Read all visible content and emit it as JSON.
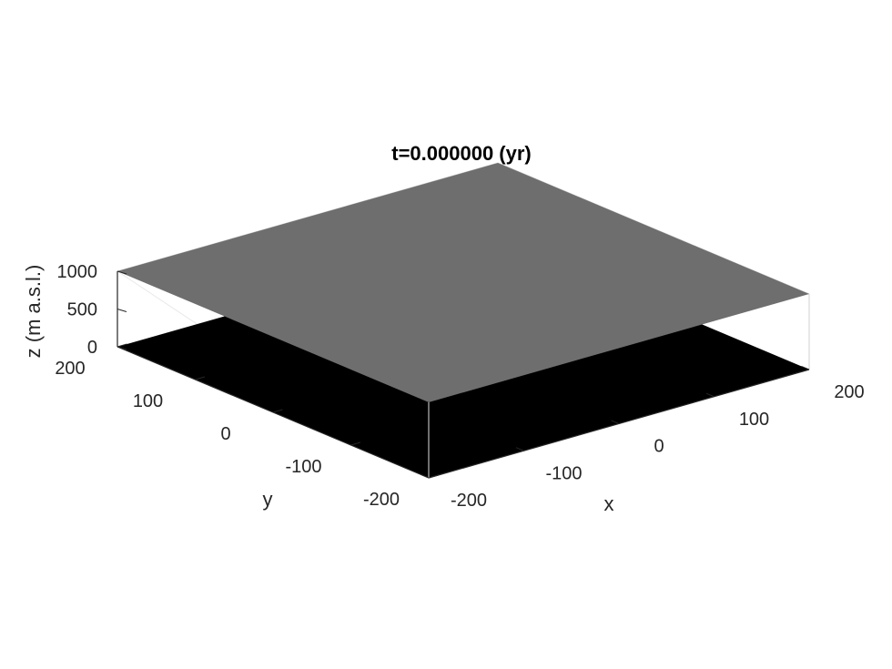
{
  "chart_data": {
    "type": "surface3d",
    "title": "t=0.000000 (yr)",
    "xlabel": "x",
    "ylabel": "y",
    "zlabel": "z (m a.s.l.)",
    "xlim": [
      -200,
      200
    ],
    "ylim": [
      -200,
      200
    ],
    "zlim": [
      0,
      1000
    ],
    "x_ticks": [
      -200,
      -100,
      0,
      100,
      200
    ],
    "y_ticks": [
      -200,
      -100,
      0,
      100,
      200
    ],
    "z_ticks": [
      0,
      500,
      1000
    ],
    "x_tick_labels": [
      "-200",
      "-100",
      "0",
      "100",
      "200"
    ],
    "y_tick_labels": [
      "-200",
      "-100",
      "0",
      "100",
      "200"
    ],
    "z_tick_labels": [
      "0",
      "500",
      "1000"
    ],
    "grid": false,
    "surfaces": [
      {
        "level": "bed",
        "z": 0,
        "color": "#000000"
      },
      {
        "level": "surface",
        "z": 1000,
        "color": "#6e6e6e"
      }
    ]
  }
}
